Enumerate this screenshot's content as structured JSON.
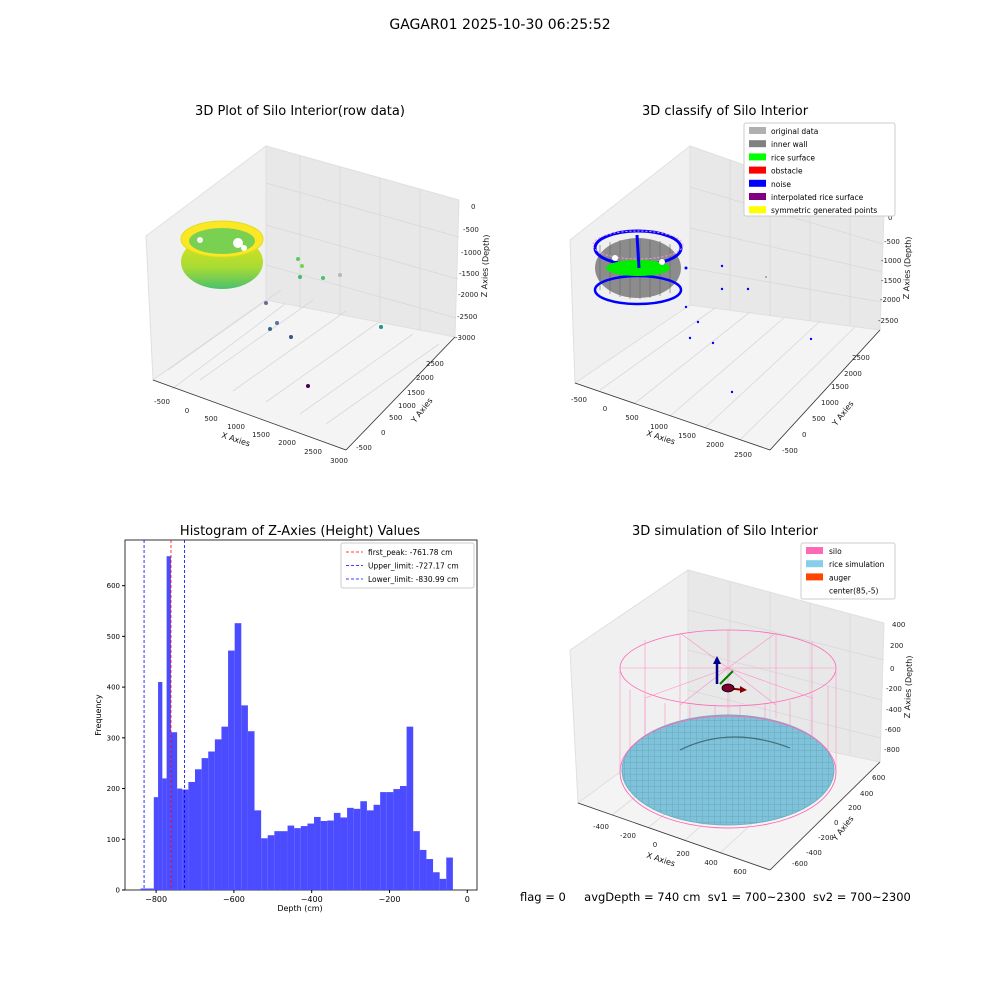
{
  "title": "GAGAR01 2025-10-30 06:25:52",
  "footer": {
    "flag": "flag = 0",
    "avg": "avgDepth = 740 cm",
    "sv1": "sv1 = 700~2300",
    "sv2": "sv2 = 700~2300"
  },
  "chart_data": [
    {
      "type": "scatter",
      "projection": "3d",
      "title": "3D Plot of Silo Interior(row data)",
      "xlabel": "X Axies",
      "ylabel": "Y Axies",
      "zlabel": "Z Axies (Depth)",
      "x_ticks": [
        "-500",
        "0",
        "500",
        "1000",
        "1500",
        "2000",
        "2500",
        "3000"
      ],
      "y_ticks": [
        "-500",
        "0",
        "500",
        "1000",
        "1500",
        "2000",
        "2500"
      ],
      "z_ticks": [
        "0",
        "-500",
        "-1000",
        "-1500",
        "-2000",
        "-2500",
        "-3000"
      ],
      "colormap": "viridis",
      "grid": true
    },
    {
      "type": "scatter",
      "projection": "3d",
      "title": "3D classify of Silo Interior",
      "xlabel": "X Axies",
      "ylabel": "Y Axies",
      "zlabel": "Z Axies (Depth)",
      "x_ticks": [
        "-500",
        "0",
        "500",
        "1000",
        "1500",
        "2000",
        "2500"
      ],
      "y_ticks": [
        "-500",
        "0",
        "500",
        "1000",
        "1500",
        "2000",
        "2500"
      ],
      "z_ticks": [
        "0",
        "-500",
        "-1000",
        "-1500",
        "-2000",
        "-2500"
      ],
      "legend": [
        {
          "label": "original data",
          "color": "#b0b0b0"
        },
        {
          "label": "inner wall",
          "color": "#808080"
        },
        {
          "label": "rice surface",
          "color": "#00ff00"
        },
        {
          "label": "obstacle",
          "color": "#ff0000"
        },
        {
          "label": "noise",
          "color": "#0000ff"
        },
        {
          "label": "interpolated rice surface",
          "color": "#800080"
        },
        {
          "label": "symmetric generated points",
          "color": "#ffff00"
        }
      ],
      "legend_position": "top-right",
      "grid": true
    },
    {
      "type": "histogram",
      "title": "Histogram of Z-Axies (Height) Values",
      "xlabel": "Depth (cm)",
      "ylabel": "Frequency",
      "xlim": [
        -880,
        25
      ],
      "ylim": [
        0,
        690
      ],
      "x_ticks": [
        -800,
        -600,
        -400,
        -200,
        0
      ],
      "y_ticks": [
        0,
        100,
        200,
        300,
        400,
        500,
        600
      ],
      "bin_width": 17,
      "bins": [
        {
          "x0": -840,
          "count": 3
        },
        {
          "x0": -823,
          "count": 3
        },
        {
          "x0": -806,
          "count": 183
        },
        {
          "x0": -795,
          "count": 410
        },
        {
          "x0": -784,
          "count": 220
        },
        {
          "x0": -773,
          "count": 658
        },
        {
          "x0": -762,
          "count": 311
        },
        {
          "x0": -746,
          "count": 200
        },
        {
          "x0": -733,
          "count": 198
        },
        {
          "x0": -717,
          "count": 213
        },
        {
          "x0": -700,
          "count": 238
        },
        {
          "x0": -683,
          "count": 260
        },
        {
          "x0": -666,
          "count": 273
        },
        {
          "x0": -649,
          "count": 297
        },
        {
          "x0": -632,
          "count": 322
        },
        {
          "x0": -615,
          "count": 472
        },
        {
          "x0": -598,
          "count": 526
        },
        {
          "x0": -581,
          "count": 364
        },
        {
          "x0": -564,
          "count": 313
        },
        {
          "x0": -547,
          "count": 157
        },
        {
          "x0": -530,
          "count": 102
        },
        {
          "x0": -513,
          "count": 108
        },
        {
          "x0": -496,
          "count": 116
        },
        {
          "x0": -479,
          "count": 116
        },
        {
          "x0": -462,
          "count": 127
        },
        {
          "x0": -445,
          "count": 122
        },
        {
          "x0": -428,
          "count": 126
        },
        {
          "x0": -411,
          "count": 131
        },
        {
          "x0": -394,
          "count": 144
        },
        {
          "x0": -377,
          "count": 136
        },
        {
          "x0": -360,
          "count": 137
        },
        {
          "x0": -343,
          "count": 152
        },
        {
          "x0": -326,
          "count": 143
        },
        {
          "x0": -309,
          "count": 162
        },
        {
          "x0": -292,
          "count": 160
        },
        {
          "x0": -275,
          "count": 175
        },
        {
          "x0": -258,
          "count": 157
        },
        {
          "x0": -241,
          "count": 168
        },
        {
          "x0": -224,
          "count": 193
        },
        {
          "x0": -207,
          "count": 193
        },
        {
          "x0": -190,
          "count": 199
        },
        {
          "x0": -173,
          "count": 205
        },
        {
          "x0": -156,
          "count": 322
        },
        {
          "x0": -139,
          "count": 116
        },
        {
          "x0": -122,
          "count": 79
        },
        {
          "x0": -105,
          "count": 61
        },
        {
          "x0": -88,
          "count": 35
        },
        {
          "x0": -71,
          "count": 22
        },
        {
          "x0": -54,
          "count": 64
        }
      ],
      "vlines": [
        {
          "label": "first_peak: -761.78 cm",
          "x": -761.78,
          "color": "#ff0000"
        },
        {
          "label": "Upper_limit: -727.17 cm",
          "x": -727.17,
          "color": "#0000ff"
        },
        {
          "label": "Lower_limit: -830.99 cm",
          "x": -830.99,
          "color": "#0000ff"
        }
      ],
      "bar_color": "#4b4bff",
      "legend_position": "top-right"
    },
    {
      "type": "surface",
      "projection": "3d",
      "title": "3D simulation of Silo Interior",
      "xlabel": "X Axies",
      "ylabel": "Y Axies",
      "zlabel": "Z Axies (Depth)",
      "x_ticks": [
        "-400",
        "-200",
        "0",
        "200",
        "400",
        "600"
      ],
      "y_ticks": [
        "-600",
        "-400",
        "-200",
        "0",
        "200",
        "400",
        "600"
      ],
      "z_ticks": [
        "400",
        "200",
        "0",
        "-200",
        "-400",
        "-600",
        "-800"
      ],
      "legend": [
        {
          "label": "silo",
          "color": "#ff69b4"
        },
        {
          "label": "rice simulation",
          "color": "#87ceeb"
        },
        {
          "label": "auger",
          "color": "#ff4500"
        },
        {
          "label": "center(85,-5)",
          "color": "#ffffff"
        }
      ],
      "legend_position": "top-right",
      "grid": true
    }
  ]
}
